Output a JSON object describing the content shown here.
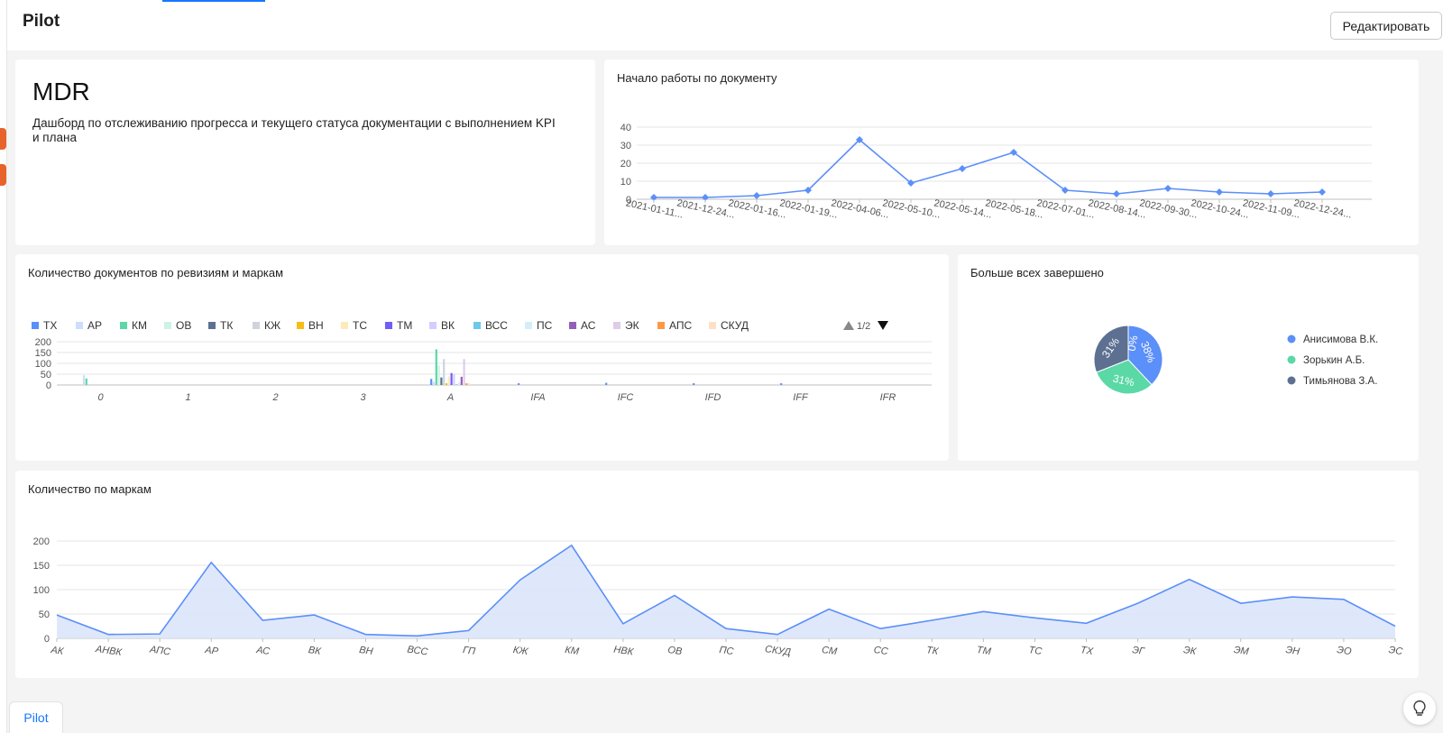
{
  "app": {
    "title": "Pilot",
    "edit_label": "Редактировать",
    "bottom_tab": "Pilot"
  },
  "mdr": {
    "title": "MDR",
    "description": "Дашборд по отслеживанию прогресса и текущего статуса документации с выполнением KPI и плана"
  },
  "colors": {
    "accent": "#1677ff",
    "line": "#5b8ff9",
    "area_fill": "#dce5fb",
    "edge_tab": "#e8622c"
  },
  "icons": {
    "help": "lightbulb-icon",
    "legend_prev": "triangle-up-icon",
    "legend_next": "triangle-down-icon"
  },
  "widgets": {
    "start_work": {
      "title": "Начало работы по документу"
    },
    "revisions": {
      "title": "Количество документов по ревизиям и маркам",
      "legend_page": "1/2"
    },
    "top_completed": {
      "title": "Больше всех завершено"
    },
    "by_mark": {
      "title": "Количество по маркам"
    }
  },
  "chart_data": [
    {
      "id": "start_work",
      "type": "line",
      "title": "Начало работы по документу",
      "x": [
        "2021-01-11...",
        "2021-12-24...",
        "2022-01-16...",
        "2022-01-19...",
        "2022-04-06...",
        "2022-05-10...",
        "2022-05-14...",
        "2022-05-18...",
        "2022-07-01...",
        "2022-08-14...",
        "2022-09-30...",
        "2022-10-24...",
        "2022-11-09...",
        "2022-12-24..."
      ],
      "values": [
        1,
        1,
        2,
        5,
        33,
        9,
        17,
        26,
        5,
        3,
        6,
        4,
        3,
        4
      ],
      "yticks": [
        0,
        10,
        20,
        30,
        40
      ],
      "ylim": [
        0,
        40
      ],
      "grid": true
    },
    {
      "id": "revisions",
      "type": "bar",
      "title": "Количество документов по ревизиям и маркам",
      "categories": [
        "0",
        "1",
        "2",
        "3",
        "A",
        "IFA",
        "IFC",
        "IFD",
        "IFF",
        "IFR"
      ],
      "yticks": [
        0,
        50,
        100,
        150,
        200
      ],
      "ylim": [
        0,
        200
      ],
      "legend_position": "top",
      "series": [
        {
          "name": "ТХ",
          "color": "#5b8ff9",
          "values": [
            0,
            0,
            0,
            0,
            28,
            8,
            10,
            8,
            8,
            0
          ]
        },
        {
          "name": "АР",
          "color": "#cdddfd",
          "values": [
            45,
            0,
            0,
            0,
            15,
            0,
            0,
            0,
            0,
            0
          ]
        },
        {
          "name": "КМ",
          "color": "#5ad8a6",
          "values": [
            30,
            0,
            0,
            0,
            165,
            0,
            0,
            0,
            0,
            0
          ]
        },
        {
          "name": "ОВ",
          "color": "#cdf3e4",
          "values": [
            0,
            0,
            0,
            0,
            90,
            0,
            0,
            0,
            0,
            0
          ]
        },
        {
          "name": "ТК",
          "color": "#5d7092",
          "values": [
            0,
            0,
            0,
            0,
            35,
            0,
            0,
            0,
            0,
            0
          ]
        },
        {
          "name": "КЖ",
          "color": "#ced4de",
          "values": [
            0,
            0,
            0,
            0,
            120,
            0,
            0,
            0,
            0,
            0
          ]
        },
        {
          "name": "ВН",
          "color": "#f6bd16",
          "values": [
            0,
            0,
            0,
            0,
            8,
            0,
            0,
            0,
            0,
            0
          ]
        },
        {
          "name": "ТС",
          "color": "#fcebb9",
          "values": [
            0,
            0,
            0,
            0,
            40,
            0,
            0,
            0,
            0,
            0
          ]
        },
        {
          "name": "ТМ",
          "color": "#6f5ef9",
          "values": [
            0,
            0,
            0,
            0,
            55,
            0,
            0,
            0,
            0,
            0
          ]
        },
        {
          "name": "ВК",
          "color": "#d3cefd",
          "values": [
            0,
            0,
            0,
            0,
            50,
            0,
            0,
            0,
            0,
            0
          ]
        },
        {
          "name": "ВСС",
          "color": "#6dc8ec",
          "values": [
            0,
            0,
            0,
            0,
            3,
            0,
            0,
            0,
            0,
            0
          ]
        },
        {
          "name": "ПС",
          "color": "#d3eef9",
          "values": [
            0,
            0,
            0,
            0,
            12,
            0,
            0,
            0,
            0,
            0
          ]
        },
        {
          "name": "АС",
          "color": "#945fb9",
          "values": [
            0,
            0,
            0,
            0,
            38,
            0,
            0,
            0,
            0,
            0
          ]
        },
        {
          "name": "ЭК",
          "color": "#dfcce9",
          "values": [
            0,
            0,
            0,
            0,
            120,
            0,
            0,
            0,
            0,
            0
          ]
        },
        {
          "name": "АПС",
          "color": "#ff9845",
          "values": [
            0,
            0,
            0,
            0,
            8,
            0,
            0,
            0,
            0,
            0
          ]
        },
        {
          "name": "СКУД",
          "color": "#ffe0c7",
          "values": [
            0,
            0,
            0,
            0,
            8,
            0,
            0,
            0,
            0,
            0
          ]
        }
      ]
    },
    {
      "id": "top_completed",
      "type": "pie",
      "title": "Больше всех завершено",
      "legend_position": "right",
      "slices": [
        {
          "name": "Анисимова В.К.",
          "value": 38,
          "label": "38%",
          "color": "#5b8ff9"
        },
        {
          "name": "Зорькин А.Б.",
          "value": 31,
          "label": "31%",
          "color": "#5ad8a6"
        },
        {
          "name": "Тимьянова З.А.",
          "value": 31,
          "label": "31%",
          "color": "#5d7092"
        },
        {
          "name": "",
          "value": 0,
          "label": "0%",
          "color": "#f6bd16"
        }
      ]
    },
    {
      "id": "by_mark",
      "type": "area",
      "title": "Количество по маркам",
      "categories": [
        "АК",
        "АНВК",
        "АПС",
        "АР",
        "АС",
        "ВК",
        "ВН",
        "ВСС",
        "ГП",
        "КЖ",
        "КМ",
        "НВК",
        "ОВ",
        "ПС",
        "СКУД",
        "СМ",
        "СС",
        "ТК",
        "ТМ",
        "ТС",
        "ТХ",
        "ЭГ",
        "ЭК",
        "ЭМ",
        "ЭН",
        "ЭО",
        "ЭС"
      ],
      "values": [
        48,
        8,
        9,
        156,
        37,
        48,
        8,
        5,
        16,
        120,
        191,
        30,
        88,
        20,
        8,
        60,
        20,
        37,
        55,
        42,
        31,
        72,
        121,
        72,
        85,
        80,
        25
      ],
      "yticks": [
        0,
        50,
        100,
        150,
        200
      ],
      "ylim": [
        0,
        200
      ],
      "grid": true
    }
  ]
}
